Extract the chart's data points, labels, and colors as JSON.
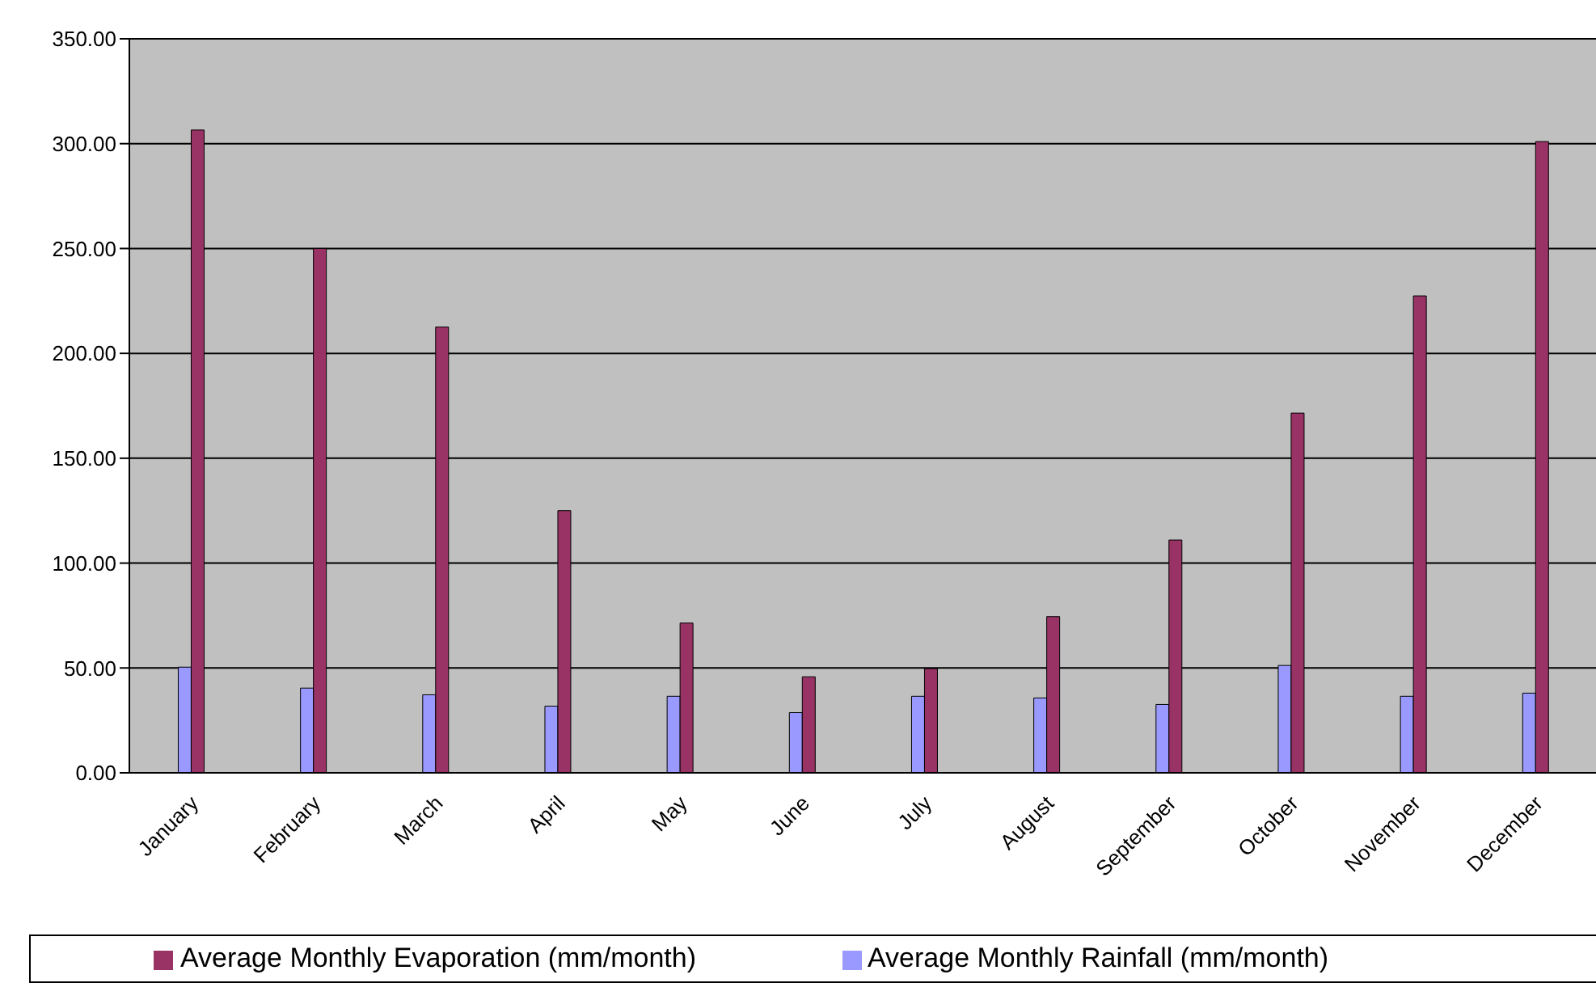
{
  "chart_data": {
    "type": "bar",
    "categories": [
      "January",
      "February",
      "March",
      "April",
      "May",
      "June",
      "July",
      "August",
      "September",
      "October",
      "November",
      "December"
    ],
    "series": [
      {
        "name": "Average Monthly Rainfall (mm/month)",
        "color": "#9999ff",
        "values": [
          50.4,
          40.4,
          37.2,
          31.8,
          36.5,
          28.7,
          36.5,
          35.7,
          32.6,
          51.2,
          36.5,
          38.0
        ]
      },
      {
        "name": "Average Monthly Evaporation (mm/month)",
        "color": "#993366",
        "values": [
          306.5,
          250.0,
          212.6,
          125.0,
          71.4,
          45.8,
          49.7,
          74.5,
          111.0,
          171.5,
          227.4,
          301.0
        ]
      }
    ],
    "ylim": [
      0,
      350
    ],
    "yticks": [
      {
        "value": 0,
        "label": "0.00"
      },
      {
        "value": 50,
        "label": "50.00"
      },
      {
        "value": 100,
        "label": "100.00"
      },
      {
        "value": 150,
        "label": "150.00"
      },
      {
        "value": 200,
        "label": "200.00"
      },
      {
        "value": 250,
        "label": "250.00"
      },
      {
        "value": 300,
        "label": "300.00"
      },
      {
        "value": 350,
        "label": "350.00"
      }
    ],
    "grid": "y",
    "legend": "bottom"
  }
}
